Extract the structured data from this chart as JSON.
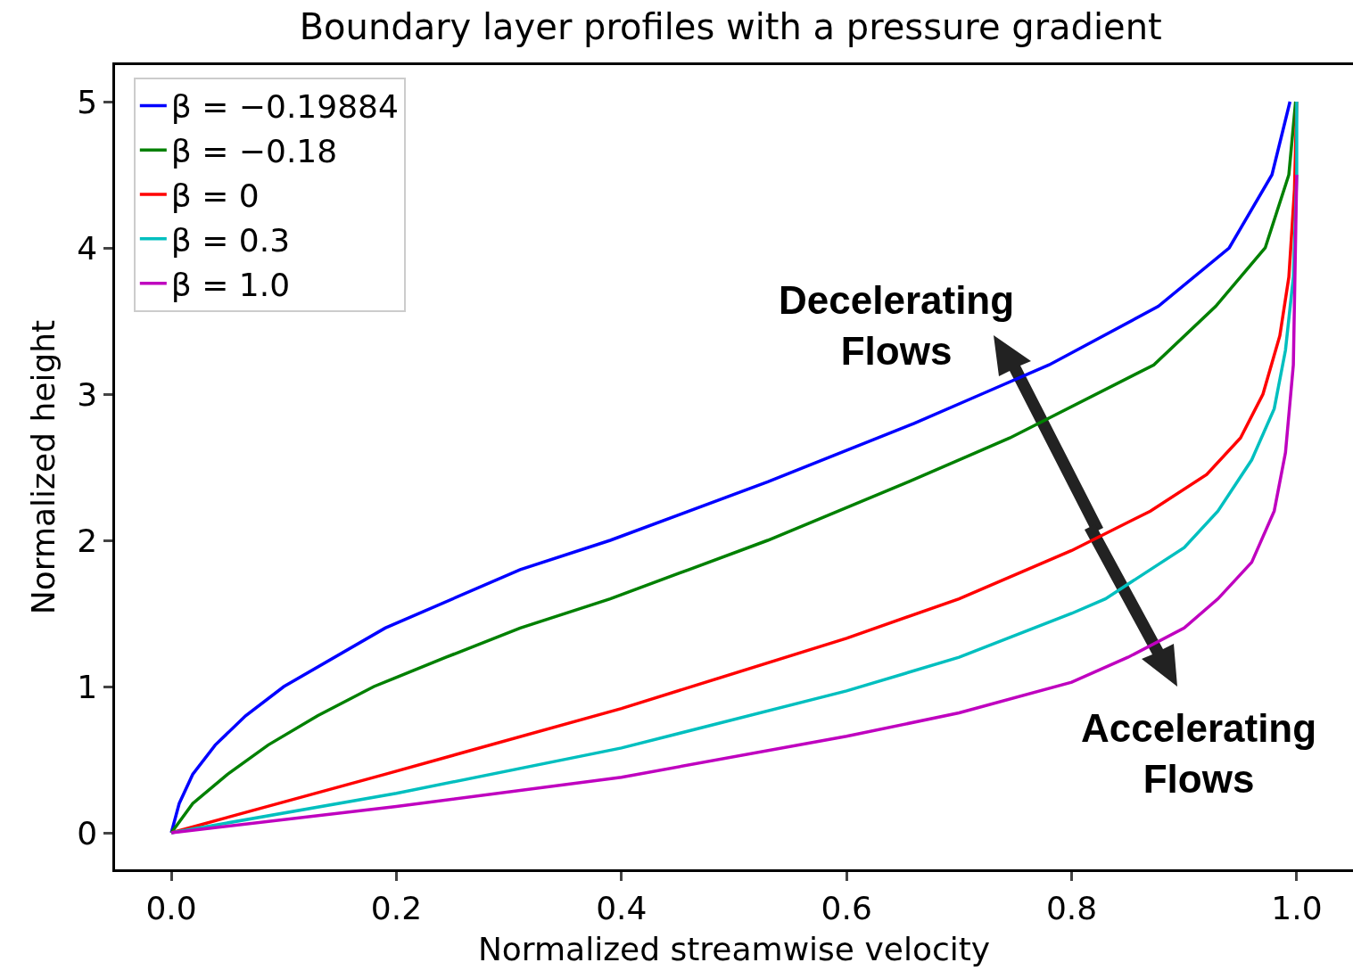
{
  "chart_data": {
    "type": "line",
    "title": "Boundary layer profiles with a pressure gradient",
    "xlabel": "Normalized streamwise velocity",
    "ylabel": "Normalized height",
    "xlim": [
      -0.05,
      1.05
    ],
    "ylim": [
      -0.25,
      5.25
    ],
    "xticks": [
      {
        "value": 0,
        "label": "0.0"
      },
      0.2,
      0.4,
      0.6,
      0.8,
      {
        "value": 1,
        "label": "1.0"
      }
    ],
    "yticks": [
      0,
      1,
      2,
      3,
      4,
      5
    ],
    "grid": false,
    "legend": "top left",
    "marker": "none",
    "line_style": "solid",
    "series": [
      {
        "name": "β = −0.19884",
        "color": "#0000ff",
        "x": [
          0,
          0.007,
          0.019,
          0.039,
          0.066,
          0.1,
          0.19,
          0.31,
          0.39,
          0.53,
          0.66,
          0.72,
          0.78,
          0.877,
          0.94,
          0.978,
          0.994
        ],
        "values": [
          0,
          0.2,
          0.4,
          0.6,
          0.8,
          1.0,
          1.4,
          1.8,
          2.0,
          2.4,
          2.8,
          3.0,
          3.2,
          3.6,
          4.0,
          4.5,
          5.0
        ]
      },
      {
        "name": "β = −0.18",
        "color": "#008000",
        "x": [
          0,
          0.019,
          0.05,
          0.086,
          0.13,
          0.18,
          0.244,
          0.31,
          0.39,
          0.46,
          0.53,
          0.655,
          0.745,
          0.873,
          0.928,
          0.972,
          0.993,
          0.999
        ],
        "values": [
          0,
          0.2,
          0.4,
          0.6,
          0.8,
          1.0,
          1.2,
          1.4,
          1.6,
          1.8,
          2.0,
          2.4,
          2.7,
          3.2,
          3.6,
          4.0,
          4.5,
          5.0
        ]
      },
      {
        "name": "β = 0",
        "color": "#ff0000",
        "x": [
          0,
          0.19,
          0.4,
          0.6,
          0.7,
          0.8,
          0.87,
          0.92,
          0.95,
          0.97,
          0.985,
          0.993,
          0.998,
          1.0
        ],
        "values": [
          0,
          0.4,
          0.85,
          1.33,
          1.6,
          1.93,
          2.2,
          2.45,
          2.7,
          3.0,
          3.4,
          3.8,
          4.4,
          5.0
        ]
      },
      {
        "name": "β = 0.3",
        "color": "#00bfbf",
        "x": [
          0,
          0.2,
          0.4,
          0.6,
          0.7,
          0.8,
          0.83,
          0.9,
          0.93,
          0.96,
          0.98,
          0.99,
          0.997,
          1.0,
          1.0
        ],
        "values": [
          0,
          0.27,
          0.58,
          0.97,
          1.2,
          1.5,
          1.6,
          1.95,
          2.2,
          2.55,
          2.9,
          3.3,
          3.8,
          4.5,
          5.0
        ]
      },
      {
        "name": "β = 1.0",
        "color": "#bf00bf",
        "x": [
          0,
          0.2,
          0.4,
          0.6,
          0.7,
          0.8,
          0.85,
          0.9,
          0.93,
          0.96,
          0.98,
          0.99,
          0.997,
          1.0
        ],
        "values": [
          0,
          0.18,
          0.38,
          0.66,
          0.82,
          1.03,
          1.2,
          1.4,
          1.6,
          1.85,
          2.2,
          2.6,
          3.2,
          4.5
        ]
      }
    ],
    "annotations": [
      "Decelerating\nFlows",
      "Accelerating\nFlows"
    ]
  }
}
